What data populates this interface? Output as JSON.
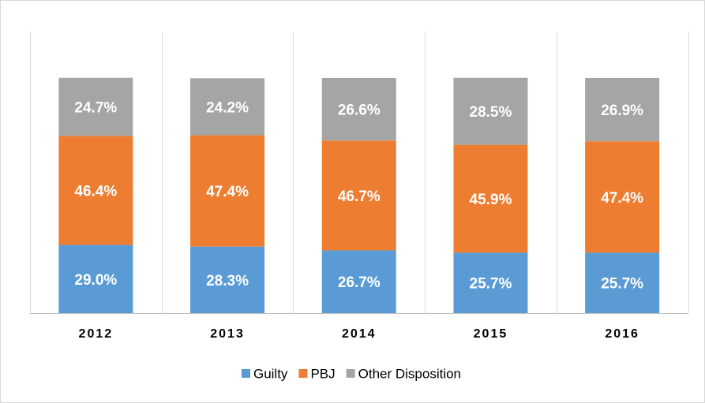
{
  "chart_data": {
    "type": "stacked_bar",
    "categories": [
      "2012",
      "2013",
      "2014",
      "2015",
      "2016"
    ],
    "series": [
      {
        "name": "Guilty",
        "color": "#5b9bd5",
        "values": [
          29.0,
          28.3,
          26.7,
          25.7,
          25.7
        ],
        "value_labels": [
          "29.0%",
          "28.3%",
          "26.7%",
          "25.7%",
          "25.7%"
        ]
      },
      {
        "name": "PBJ",
        "color": "#ed7d31",
        "values": [
          46.4,
          47.4,
          46.7,
          45.9,
          47.4
        ],
        "value_labels": [
          "46.4%",
          "47.4%",
          "46.7%",
          "45.9%",
          "47.4%"
        ]
      },
      {
        "name": "Other Disposition",
        "color": "#a5a5a5",
        "values": [
          24.7,
          24.2,
          26.6,
          28.5,
          26.9
        ],
        "value_labels": [
          "24.7%",
          "24.2%",
          "26.6%",
          "28.5%",
          "26.9%"
        ]
      }
    ],
    "ylim": [
      0,
      100
    ],
    "legend": "bottom"
  }
}
